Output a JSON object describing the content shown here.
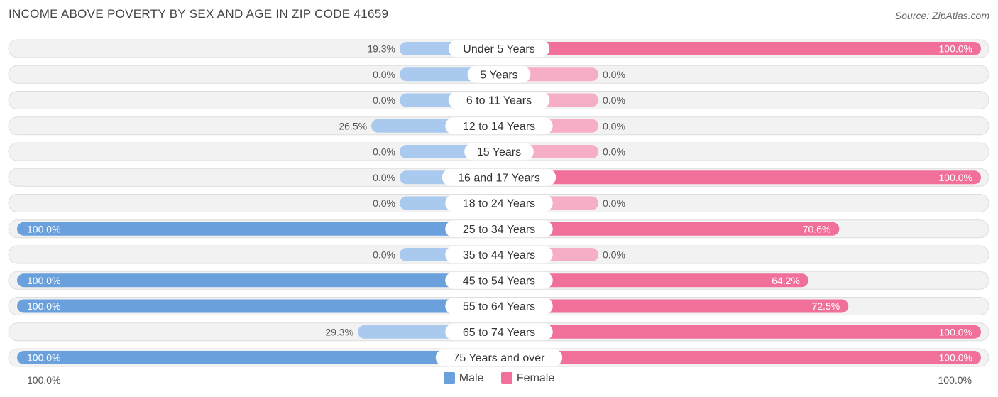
{
  "header": {
    "title": "INCOME ABOVE POVERTY BY SEX AND AGE IN ZIP CODE 41659",
    "source": "Source: ZipAtlas.com"
  },
  "axis": {
    "left_label": "100.0%",
    "right_label": "100.0%"
  },
  "legend": {
    "male_label": "Male",
    "female_label": "Female"
  },
  "colors": {
    "male_strong": "#6aa0dc",
    "male_light": "#a9c9ee",
    "female_strong": "#f0709a",
    "female_light": "#f6adc6",
    "row_bg": "#f2f2f2",
    "row_border": "#dedede"
  },
  "chart_data": {
    "type": "bar",
    "orientation": "horizontal-diverging",
    "title": "INCOME ABOVE POVERTY BY SEX AND AGE IN ZIP CODE 41659",
    "categories": [
      "Under 5 Years",
      "5 Years",
      "6 to 11 Years",
      "12 to 14 Years",
      "15 Years",
      "16 and 17 Years",
      "18 to 24 Years",
      "25 to 34 Years",
      "35 to 44 Years",
      "45 to 54 Years",
      "55 to 64 Years",
      "65 to 74 Years",
      "75 Years and over"
    ],
    "series": [
      {
        "name": "Male",
        "values": [
          19.3,
          0.0,
          0.0,
          26.5,
          0.0,
          0.0,
          0.0,
          100.0,
          0.0,
          100.0,
          100.0,
          29.3,
          100.0
        ]
      },
      {
        "name": "Female",
        "values": [
          100.0,
          0.0,
          0.0,
          0.0,
          0.0,
          100.0,
          0.0,
          70.6,
          0.0,
          64.2,
          72.5,
          100.0,
          100.0
        ]
      }
    ],
    "value_labels": {
      "Male": [
        "19.3%",
        "0.0%",
        "0.0%",
        "26.5%",
        "0.0%",
        "0.0%",
        "0.0%",
        "100.0%",
        "0.0%",
        "100.0%",
        "100.0%",
        "29.3%",
        "100.0%"
      ],
      "Female": [
        "100.0%",
        "0.0%",
        "0.0%",
        "0.0%",
        "0.0%",
        "100.0%",
        "0.0%",
        "70.6%",
        "0.0%",
        "64.2%",
        "72.5%",
        "100.0%",
        "100.0%"
      ]
    },
    "xlim": [
      0,
      100
    ],
    "legend_position": "bottom-center"
  }
}
